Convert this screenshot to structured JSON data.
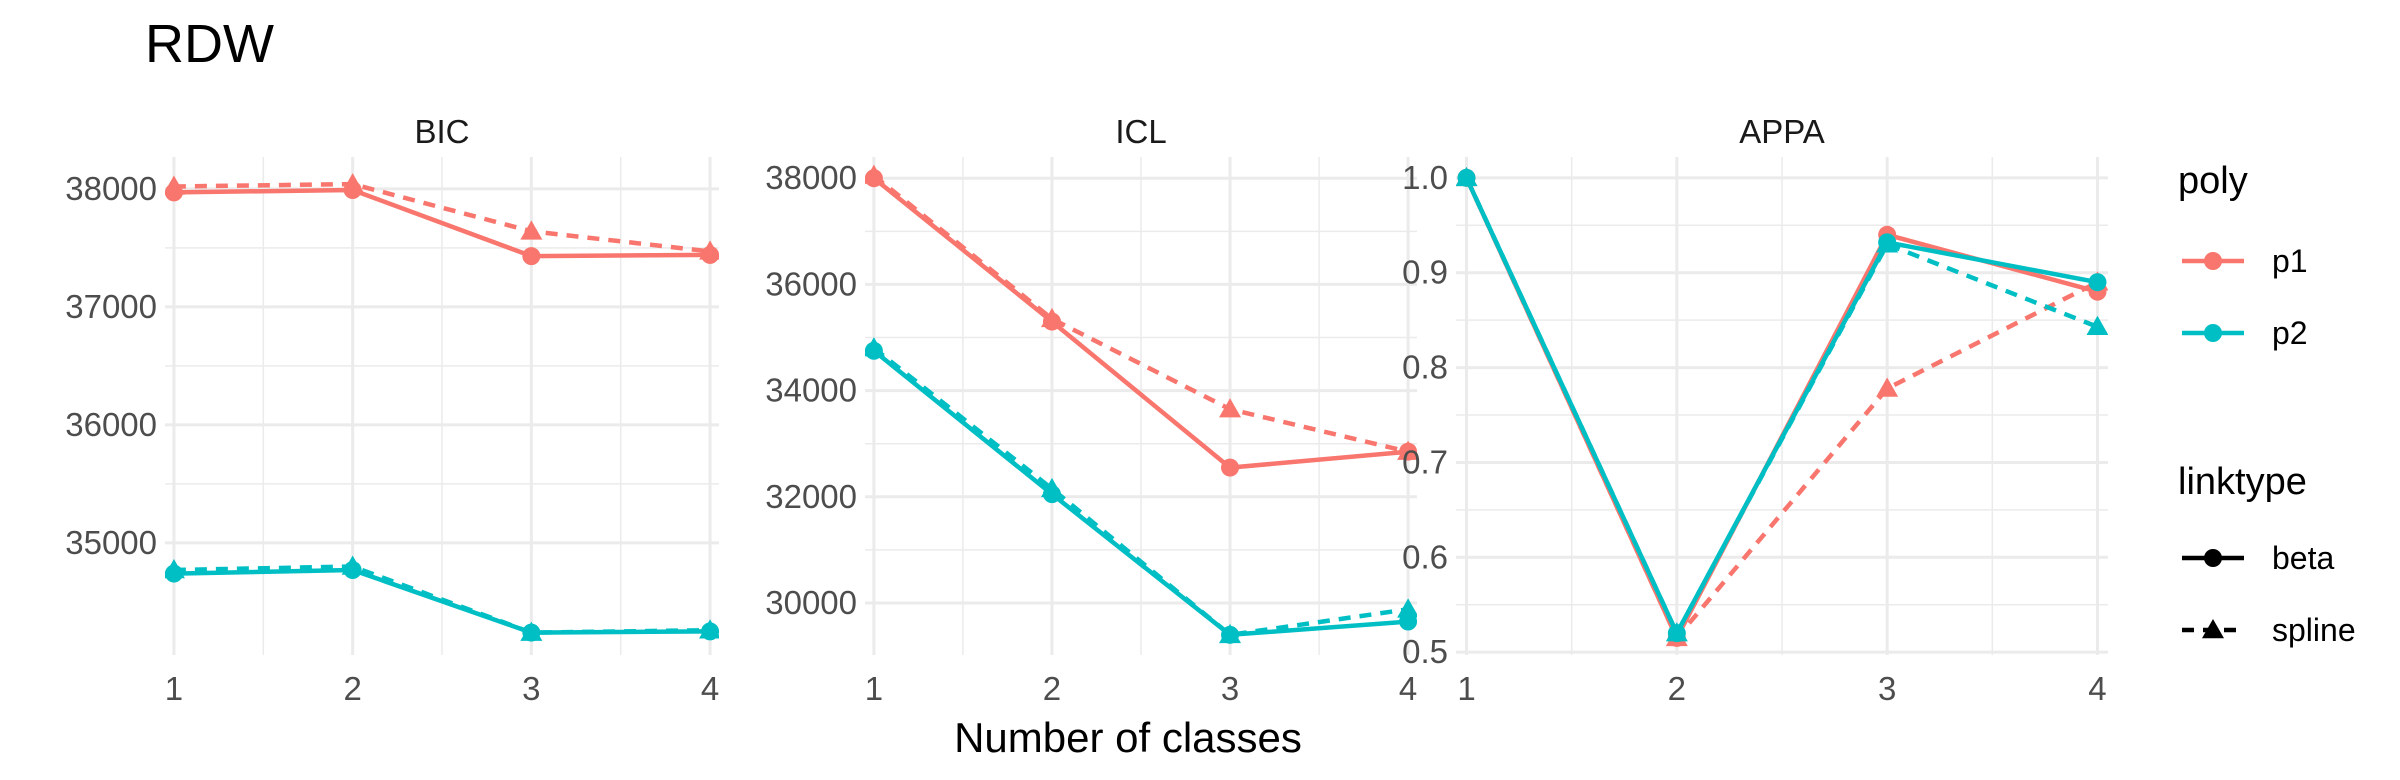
{
  "title": "RDW",
  "xlabel": "Number of classes",
  "colors": {
    "p1": "#F8766D",
    "p2": "#00BFC4",
    "grid": "#EBEBEB"
  },
  "legend": {
    "poly": {
      "title": "poly",
      "items": [
        {
          "label": "p1",
          "color": "#F8766D"
        },
        {
          "label": "p2",
          "color": "#00BFC4"
        }
      ]
    },
    "linktype": {
      "title": "linktype",
      "items": [
        {
          "label": "beta",
          "marker": "circle",
          "dash": "solid"
        },
        {
          "label": "spline",
          "marker": "triangle",
          "dash": "dashed"
        }
      ]
    }
  },
  "chart_data": [
    {
      "type": "line",
      "title": "BIC",
      "x": [
        1,
        2,
        3,
        4
      ],
      "xticks": [
        "1",
        "2",
        "3",
        "4"
      ],
      "xlim": [
        0.95,
        4.05
      ],
      "yticks": [
        35000,
        36000,
        37000,
        38000
      ],
      "ytick_labels": [
        "35000",
        "36000",
        "37000",
        "38000"
      ],
      "ylim": [
        34050,
        38270
      ],
      "grid": true,
      "series": [
        {
          "poly": "p1",
          "linktype": "beta",
          "values": [
            37970,
            37990,
            37430,
            37440
          ]
        },
        {
          "poly": "p1",
          "linktype": "spline",
          "values": [
            38020,
            38040,
            37640,
            37470
          ]
        },
        {
          "poly": "p2",
          "linktype": "beta",
          "values": [
            34740,
            34770,
            34240,
            34250
          ]
        },
        {
          "poly": "p2",
          "linktype": "spline",
          "values": [
            34770,
            34800,
            34240,
            34260
          ]
        }
      ]
    },
    {
      "type": "line",
      "title": "ICL",
      "x": [
        1,
        2,
        3,
        4
      ],
      "xticks": [
        "1",
        "2",
        "3",
        "4"
      ],
      "xlim": [
        0.95,
        4.05
      ],
      "yticks": [
        30000,
        32000,
        34000,
        36000,
        38000
      ],
      "ytick_labels": [
        "30000",
        "32000",
        "34000",
        "36000",
        "38000"
      ],
      "ylim": [
        29020,
        38400
      ],
      "grid": true,
      "series": [
        {
          "poly": "p1",
          "linktype": "beta",
          "values": [
            38000,
            35300,
            32550,
            32850
          ]
        },
        {
          "poly": "p1",
          "linktype": "spline",
          "values": [
            38050,
            35350,
            33650,
            32850
          ]
        },
        {
          "poly": "p2",
          "linktype": "beta",
          "values": [
            34750,
            32050,
            29400,
            29650
          ]
        },
        {
          "poly": "p2",
          "linktype": "spline",
          "values": [
            34800,
            32150,
            29400,
            29880
          ]
        }
      ]
    },
    {
      "type": "line",
      "title": "APPA",
      "x": [
        1,
        2,
        3,
        4
      ],
      "xticks": [
        "1",
        "2",
        "3",
        "4"
      ],
      "xlim": [
        0.95,
        4.05
      ],
      "yticks": [
        0.5,
        0.6,
        0.7,
        0.8,
        0.9,
        1.0
      ],
      "ytick_labels": [
        "0.5",
        "0.6",
        "0.7",
        "0.8",
        "0.9",
        "1.0"
      ],
      "ylim": [
        0.497,
        1.022
      ],
      "grid": true,
      "series": [
        {
          "poly": "p1",
          "linktype": "beta",
          "values": [
            1.0,
            0.515,
            0.94,
            0.88
          ]
        },
        {
          "poly": "p1",
          "linktype": "spline",
          "values": [
            1.0,
            0.515,
            0.778,
            0.89
          ]
        },
        {
          "poly": "p2",
          "linktype": "beta",
          "values": [
            1.0,
            0.52,
            0.932,
            0.89
          ]
        },
        {
          "poly": "p2",
          "linktype": "spline",
          "values": [
            1.0,
            0.52,
            0.93,
            0.843
          ]
        }
      ]
    }
  ]
}
